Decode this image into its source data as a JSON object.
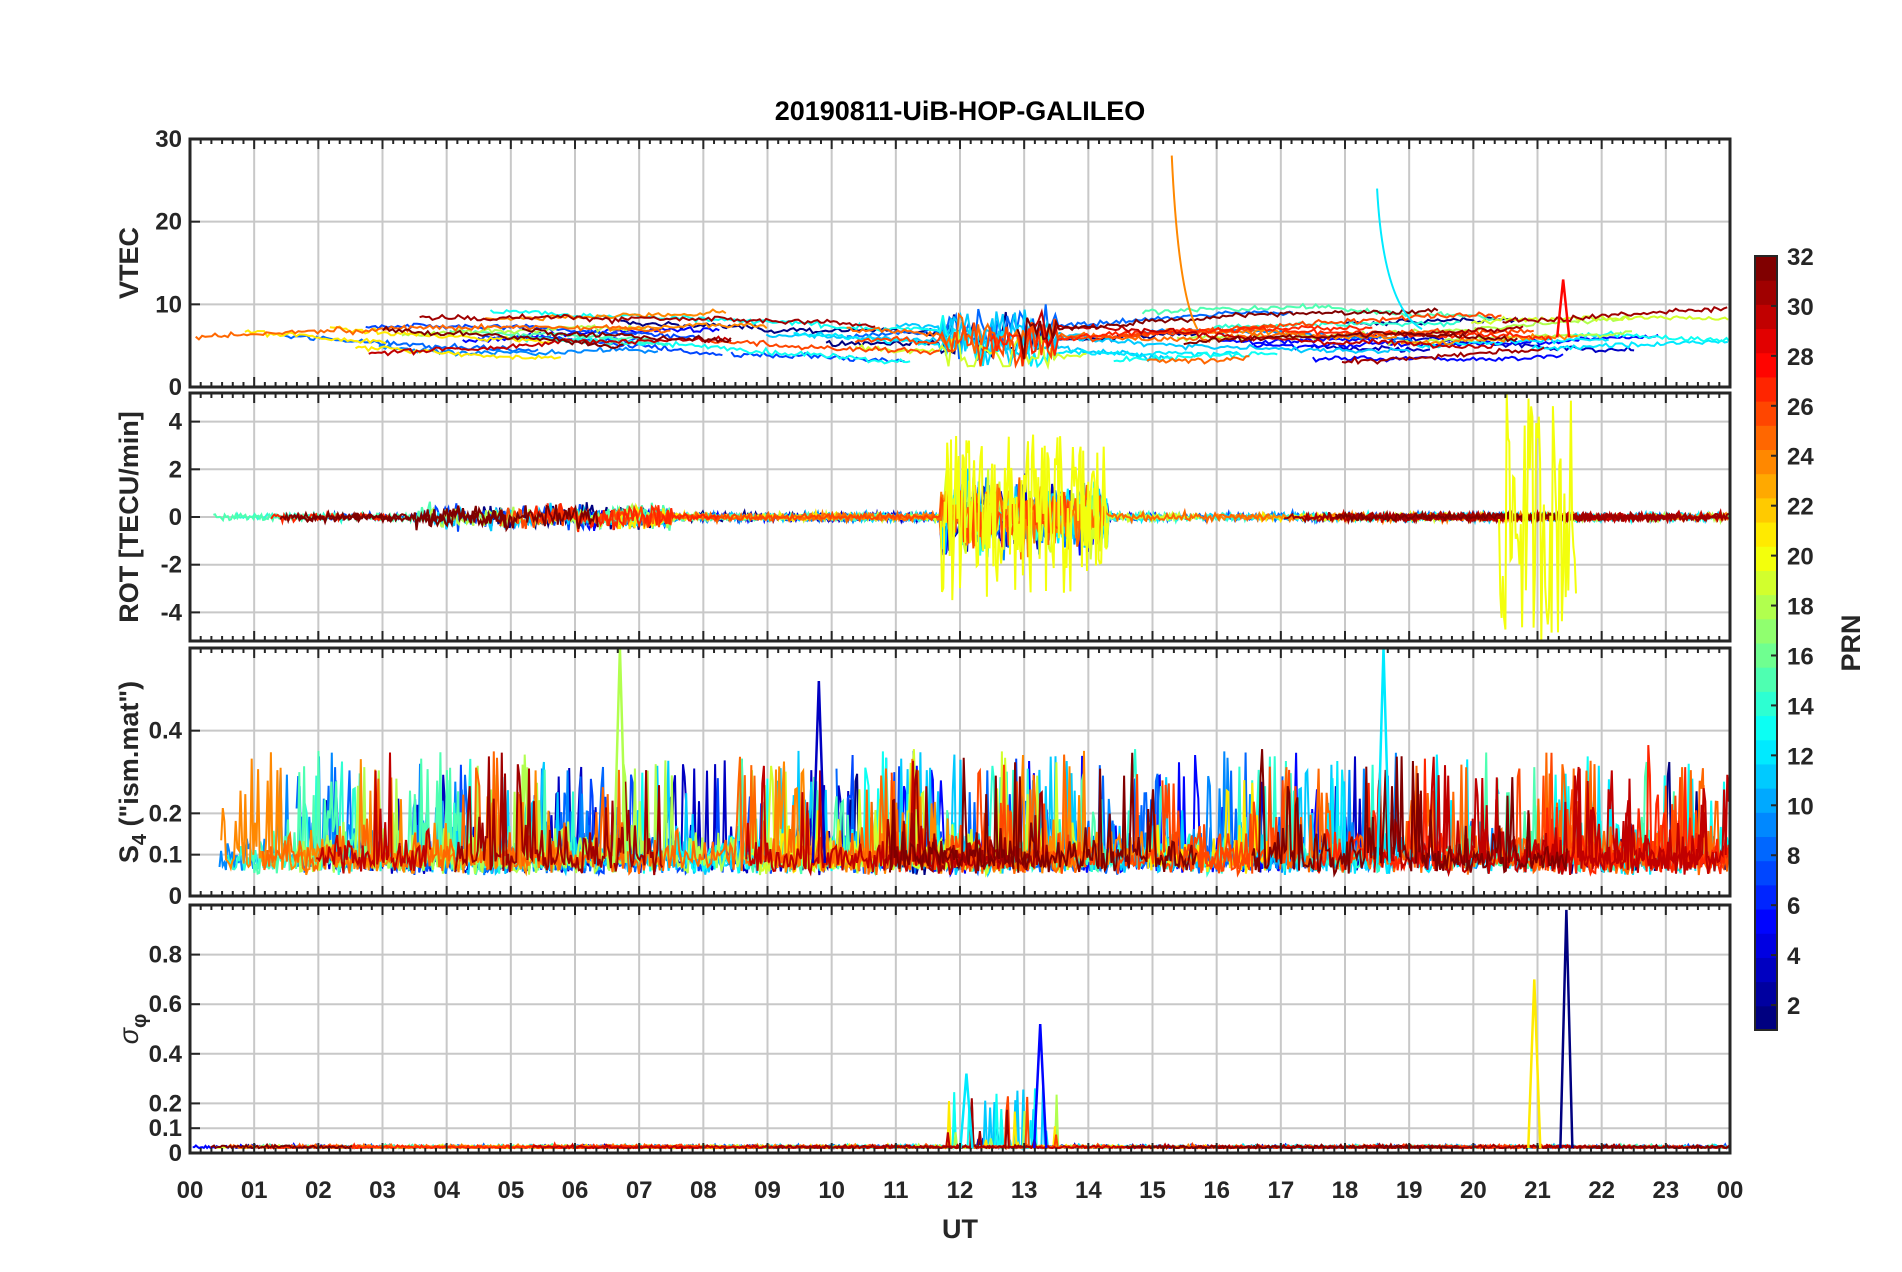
{
  "chart_data": {
    "type": "line",
    "title": "20190811-UiB-HOP-GALILEO",
    "xlabel": "UT",
    "x_range_hours": [
      0,
      24
    ],
    "x_ticks": [
      "00",
      "01",
      "02",
      "03",
      "04",
      "05",
      "06",
      "07",
      "08",
      "09",
      "10",
      "11",
      "12",
      "13",
      "14",
      "15",
      "16",
      "17",
      "18",
      "19",
      "20",
      "21",
      "22",
      "23",
      "00"
    ],
    "panels": [
      {
        "id": "vtec",
        "ylabel": "VTEC",
        "ylim": [
          0,
          30
        ],
        "y_ticks": [
          0,
          10,
          20,
          30
        ],
        "y_tick_labels": [
          "0",
          "10",
          "20",
          "30"
        ]
      },
      {
        "id": "rot",
        "ylabel": "ROT [TECU/min]",
        "ylim": [
          -5.2,
          5.2
        ],
        "y_ticks": [
          -4,
          -2,
          0,
          2,
          4
        ],
        "y_tick_labels": [
          "-4",
          "-2",
          "0",
          "2",
          "4"
        ]
      },
      {
        "id": "s4",
        "ylabel_main": "S",
        "ylabel_sub": "4",
        "ylabel_rest": " (\"ism.mat\")",
        "ylim": [
          0,
          0.6
        ],
        "y_ticks": [
          0,
          0.1,
          0.2,
          0.4
        ],
        "y_tick_labels": [
          "0",
          "0.1",
          "0.2",
          "0.4"
        ]
      },
      {
        "id": "sigma",
        "ylabel_main": "σ",
        "ylabel_sub": "φ",
        "ylim": [
          0,
          1
        ],
        "y_ticks": [
          0,
          0.1,
          0.2,
          0.4,
          0.6,
          0.8
        ],
        "y_tick_labels": [
          "0",
          "0.1",
          "0.2",
          "0.4",
          "0.6",
          "0.8"
        ]
      }
    ],
    "colorbar": {
      "label": "PRN",
      "range": [
        1,
        32
      ],
      "ticks": [
        2,
        4,
        6,
        8,
        10,
        12,
        14,
        16,
        18,
        20,
        22,
        24,
        26,
        28,
        30,
        32
      ],
      "colormap": "jet",
      "levels": 32
    },
    "series_prns": [
      1,
      3,
      5,
      7,
      8,
      9,
      11,
      12,
      13,
      14,
      15,
      18,
      19,
      21,
      24,
      25,
      26,
      27,
      30,
      31,
      33
    ],
    "events": [
      {
        "panel": "vtec",
        "prn": 24,
        "hour_start": 15.3,
        "hour_end": 15.7,
        "peak": 28,
        "desc": "spike"
      },
      {
        "panel": "vtec",
        "prn": 12,
        "hour_start": 18.5,
        "hour_end": 19.2,
        "peak": 24,
        "desc": "spike"
      },
      {
        "panel": "vtec",
        "prn": 28,
        "hour": 21.4,
        "peak": 13,
        "desc": "spike"
      },
      {
        "panel": "rot",
        "hour_start": 11.7,
        "hour_end": 14.3,
        "amplitude": 3.5,
        "desc": "high activity"
      },
      {
        "panel": "rot",
        "hour_start": 20.4,
        "hour_end": 21.6,
        "amplitude": 5.2,
        "desc": "high activity"
      },
      {
        "panel": "s4",
        "prn": 18,
        "hour": 6.7,
        "peak": 0.6
      },
      {
        "panel": "s4",
        "prn": 12,
        "hour": 18.6,
        "peak": 0.6
      },
      {
        "panel": "s4",
        "prn": 3,
        "hour": 9.8,
        "peak": 0.52
      },
      {
        "panel": "sigma",
        "prn": 1,
        "hour": 21.45,
        "peak": 0.98
      },
      {
        "panel": "sigma",
        "prn": 21,
        "hour": 20.95,
        "peak": 0.7
      },
      {
        "panel": "sigma",
        "prn": 5,
        "hour": 13.25,
        "peak": 0.52
      },
      {
        "panel": "sigma",
        "prn": 12,
        "hour": 12.1,
        "peak": 0.32
      }
    ]
  }
}
